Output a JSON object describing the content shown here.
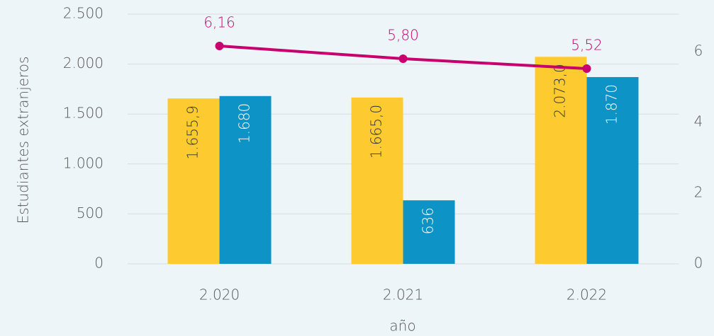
{
  "chart_data": {
    "type": "bar-line",
    "x_label": "año",
    "y_label": "Estudiantes extranjeros",
    "categories": [
      "2.020",
      "2.021",
      "2.022"
    ],
    "series": [
      {
        "color": "#fdca30",
        "values": [
          1655.9,
          1665.0,
          2073.0
        ],
        "value_labels": [
          "1.655,9",
          "1.665,0",
          "2.073,0"
        ],
        "label_color": "#333333"
      },
      {
        "color": "#0e93c6",
        "values": [
          1680,
          636,
          1870
        ],
        "value_labels": [
          "1.680",
          "636",
          "1.870"
        ],
        "label_color": "#ffffff"
      },
      {
        "type": "line",
        "axis": "y2",
        "color": "#c8006e",
        "values": [
          6.16,
          5.8,
          5.52
        ],
        "value_labels": [
          "6,16",
          "5,80",
          "5,52"
        ]
      }
    ],
    "ylim": [
      0,
      2500
    ],
    "yticks": [
      0,
      500,
      {
        "value": 1000,
        "label": "1.000"
      },
      {
        "value": 1500,
        "label": "1.500"
      },
      {
        "value": 2000,
        "label": "2.000"
      },
      {
        "value": 2500,
        "label": "2.500"
      }
    ],
    "y2lim": [
      0,
      7.06
    ],
    "y2ticks": [
      0,
      2,
      4,
      6
    ],
    "grid": true
  }
}
